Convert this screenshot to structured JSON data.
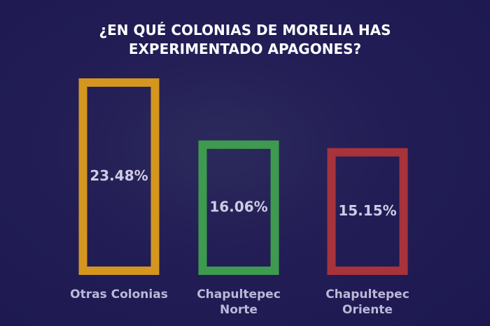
{
  "chart_data": {
    "type": "bar",
    "title": "¿EN QUÉ COLONIAS DE MORELIA HAS EXPERIMENTADO APAGONES?",
    "categories": [
      "Otras Colonias",
      "Chapultepec Norte",
      "Chapultepec Oriente"
    ],
    "series": [
      {
        "colors": [
          "#d4961e",
          "#3e9a4e",
          "#a8333b"
        ],
        "values": [
          23.48,
          16.06,
          15.15
        ],
        "value_labels": [
          "23.48%",
          "16.06%",
          "15.15%"
        ]
      }
    ]
  }
}
